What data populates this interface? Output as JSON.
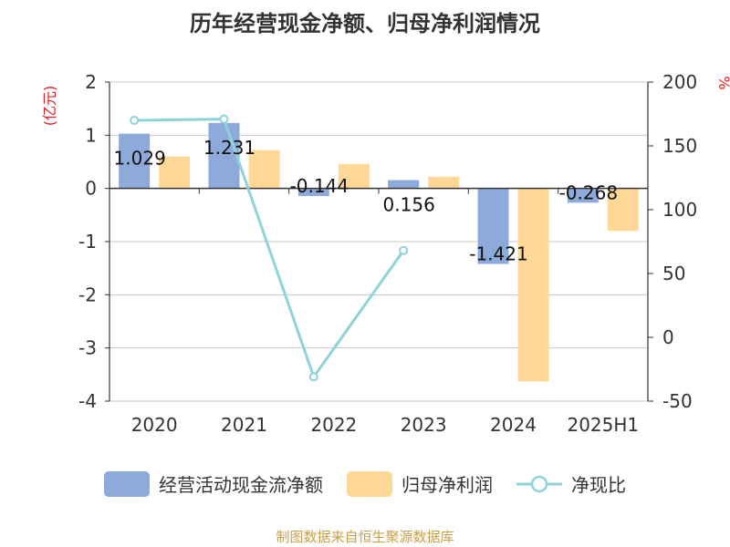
{
  "chart_data": {
    "type": "bar",
    "title": "历年经营现金净额、归母净利润情况",
    "categories": [
      "2020",
      "2021",
      "2022",
      "2023",
      "2024",
      "2025H1"
    ],
    "series": [
      {
        "name": "经营活动现金流净额",
        "type": "bar",
        "axis": "left",
        "color": "#8eaadb",
        "values": [
          1.029,
          1.231,
          -0.144,
          0.156,
          -1.421,
          -0.268
        ],
        "labels": [
          "1.029",
          "1.231",
          "-0.144",
          "0.156",
          "-1.421",
          "-0.268"
        ]
      },
      {
        "name": "归母净利润",
        "type": "bar",
        "axis": "left",
        "color": "#ffd898",
        "values": [
          0.6,
          0.72,
          0.46,
          0.22,
          -3.63,
          -0.8
        ]
      },
      {
        "name": "净现比",
        "type": "line",
        "axis": "right",
        "color": "#8fd3d8",
        "values": [
          170,
          171,
          -31,
          68,
          null,
          null
        ]
      }
    ],
    "y_left": {
      "label": "(亿元)",
      "min": -4,
      "max": 2,
      "ticks": [
        "-4",
        "-3",
        "-2",
        "-1",
        "0",
        "1",
        "2"
      ]
    },
    "y_right": {
      "label": "%",
      "min": -50,
      "max": 200,
      "ticks": [
        "-50",
        "0",
        "50",
        "100",
        "150",
        "200"
      ]
    },
    "grid": true,
    "legend_position": "bottom"
  },
  "colors": {
    "cash_flow": "#8eaadb",
    "net_profit": "#ffd898",
    "ratio_line": "#8fd3d8",
    "axis_label_left": "#e02020",
    "axis_label_right": "#e02020",
    "source": "#c8a04a"
  },
  "legend": [
    {
      "label": "经营活动现金流净额"
    },
    {
      "label": "归母净利润"
    },
    {
      "label": "净现比"
    }
  ],
  "footer": {
    "source": "制图数据来自恒生聚源数据库"
  }
}
